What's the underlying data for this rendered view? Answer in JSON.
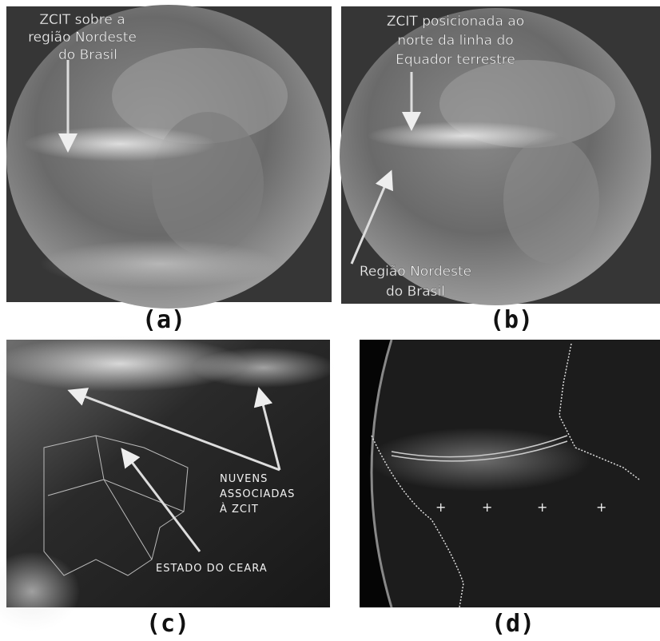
{
  "panels": [
    {
      "label": "(a)",
      "annotations": [
        {
          "lines": [
            "ZCIT sobre a",
            "região Nordeste",
            "do Brasil"
          ]
        }
      ]
    },
    {
      "label": "(b)",
      "annotations": [
        {
          "lines": [
            "ZCIT posicionada ao",
            "norte da linha do",
            "Equador terrestre"
          ]
        },
        {
          "lines": [
            "Região Nordeste",
            "do Brasil"
          ]
        }
      ]
    },
    {
      "label": "(c)",
      "annotations": [
        {
          "lines": [
            "NUVENS",
            "ASSOCIADAS",
            "À ZCIT"
          ]
        },
        {
          "lines": [
            "ESTADO DO CEARA"
          ]
        }
      ]
    },
    {
      "label": "(d)"
    }
  ]
}
